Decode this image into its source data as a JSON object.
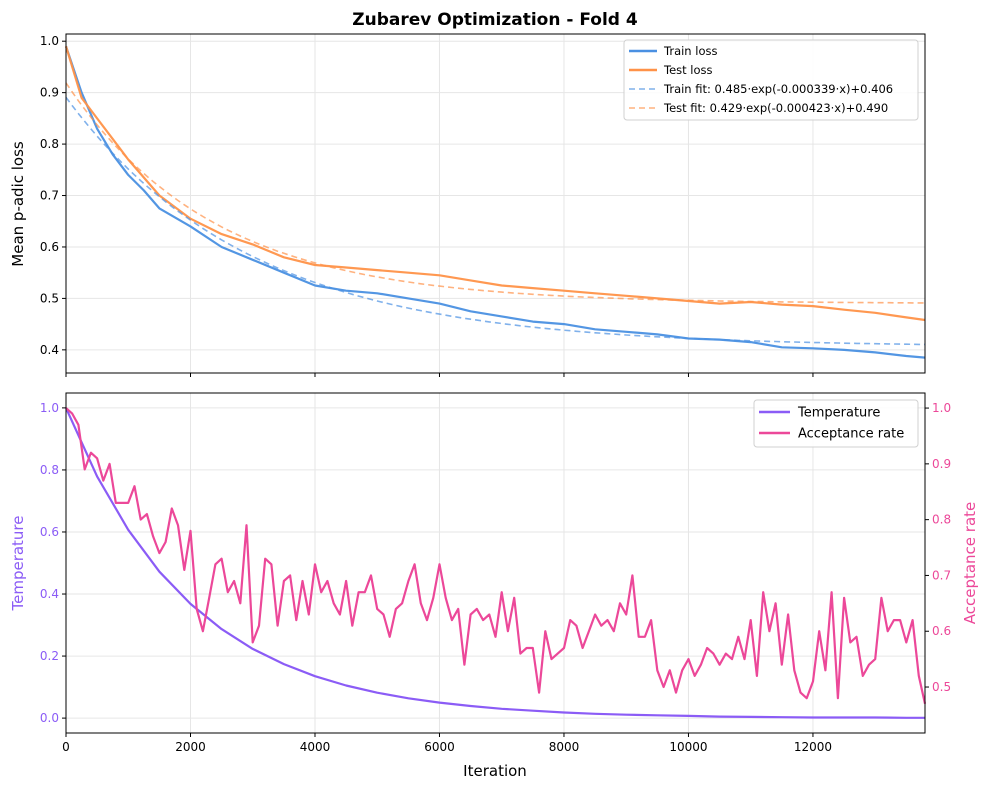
{
  "chart_data": [
    {
      "type": "line",
      "title": "Zubarev Optimization - Fold 4",
      "xlabel": "",
      "ylabel": "Mean p-adic loss",
      "xlim": [
        0,
        13800
      ],
      "ylim": [
        0.355,
        1.014
      ],
      "xticks": [
        0,
        2000,
        4000,
        6000,
        8000,
        10000,
        12000
      ],
      "yticks": [
        "0.4",
        "0.5",
        "0.6",
        "0.7",
        "0.8",
        "0.9",
        "1.0"
      ],
      "grid": true,
      "legend_placement": "upper right",
      "series": [
        {
          "name": "Train loss",
          "color": "#4a90e2",
          "style": "solid",
          "x": [
            0,
            250,
            500,
            750,
            1000,
            1250,
            1500,
            2000,
            2500,
            3000,
            3500,
            4000,
            4500,
            5000,
            5500,
            6000,
            6500,
            7000,
            7500,
            8000,
            8500,
            9000,
            9500,
            10000,
            10500,
            11000,
            11500,
            12000,
            12500,
            13000,
            13500,
            13800
          ],
          "y": [
            0.99,
            0.9,
            0.83,
            0.78,
            0.74,
            0.71,
            0.675,
            0.64,
            0.6,
            0.575,
            0.55,
            0.525,
            0.515,
            0.51,
            0.5,
            0.49,
            0.475,
            0.465,
            0.455,
            0.45,
            0.44,
            0.435,
            0.43,
            0.422,
            0.42,
            0.415,
            0.405,
            0.403,
            0.4,
            0.395,
            0.388,
            0.385
          ]
        },
        {
          "name": "Test loss",
          "color": "#ff9248",
          "style": "solid",
          "x": [
            0,
            250,
            500,
            750,
            1000,
            1500,
            2000,
            2500,
            3000,
            3500,
            4000,
            4500,
            5000,
            5500,
            6000,
            6500,
            7000,
            7500,
            8000,
            8500,
            9000,
            9500,
            10000,
            10500,
            11000,
            11500,
            12000,
            12500,
            13000,
            13500,
            13800
          ],
          "y": [
            0.99,
            0.89,
            0.85,
            0.81,
            0.77,
            0.7,
            0.655,
            0.625,
            0.605,
            0.58,
            0.565,
            0.56,
            0.555,
            0.55,
            0.545,
            0.535,
            0.525,
            0.52,
            0.515,
            0.51,
            0.505,
            0.5,
            0.495,
            0.49,
            0.493,
            0.488,
            0.485,
            0.478,
            0.472,
            0.463,
            0.458
          ]
        },
        {
          "name": "Train fit: 0.485·exp(-0.000339·x)+0.406",
          "color": "#4a90e2",
          "style": "dashed",
          "fit": {
            "a": 0.485,
            "b": 0.000339,
            "c": 0.406
          }
        },
        {
          "name": "Test fit: 0.429·exp(-0.000423·x)+0.490",
          "color": "#ff9248",
          "style": "dashed",
          "fit": {
            "a": 0.429,
            "b": 0.000423,
            "c": 0.49
          }
        }
      ]
    },
    {
      "type": "line",
      "title": "",
      "xlabel": "Iteration",
      "ylabel": "Temperature",
      "ylabel_right": "Acceptance rate",
      "xlim": [
        0,
        13800
      ],
      "ylim": [
        -0.048,
        1.048
      ],
      "ylim_right": [
        0.4176,
        1.027
      ],
      "xticks": [
        "0",
        "2000",
        "4000",
        "6000",
        "8000",
        "10000",
        "12000"
      ],
      "yticks": [
        "0.0",
        "0.2",
        "0.4",
        "0.6",
        "0.8",
        "1.0"
      ],
      "yticks_right": [
        "0.5",
        "0.6",
        "0.7",
        "0.8",
        "0.9",
        "1.0"
      ],
      "grid": true,
      "legend_placement": "upper right",
      "series": [
        {
          "name": "Temperature",
          "color": "#8b5cf6",
          "axis": "left",
          "x": [
            0,
            500,
            1000,
            1500,
            2000,
            2500,
            3000,
            3500,
            4000,
            4500,
            5000,
            5500,
            6000,
            6500,
            7000,
            7500,
            8000,
            8500,
            9000,
            9500,
            10000,
            10500,
            11000,
            11500,
            12000,
            12500,
            13000,
            13500,
            13800
          ],
          "y": [
            1,
            0.779,
            0.607,
            0.472,
            0.368,
            0.287,
            0.223,
            0.174,
            0.135,
            0.105,
            0.082,
            0.064,
            0.05,
            0.039,
            0.03,
            0.024,
            0.018,
            0.014,
            0.011,
            0.009,
            0.007,
            0.005,
            0.004,
            0.003,
            0.002,
            0.002,
            0.002,
            0.001,
            0.001
          ]
        },
        {
          "name": "Acceptance rate",
          "color": "#ec4899",
          "axis": "right",
          "x_step": 100,
          "y": [
            1.0,
            0.99,
            0.97,
            0.89,
            0.92,
            0.91,
            0.87,
            0.9,
            0.83,
            0.83,
            0.83,
            0.86,
            0.8,
            0.81,
            0.77,
            0.74,
            0.76,
            0.82,
            0.79,
            0.71,
            0.78,
            0.64,
            0.6,
            0.66,
            0.72,
            0.73,
            0.67,
            0.69,
            0.65,
            0.79,
            0.58,
            0.61,
            0.73,
            0.72,
            0.61,
            0.69,
            0.7,
            0.62,
            0.69,
            0.63,
            0.72,
            0.67,
            0.69,
            0.65,
            0.63,
            0.69,
            0.61,
            0.67,
            0.67,
            0.7,
            0.64,
            0.63,
            0.59,
            0.64,
            0.65,
            0.69,
            0.72,
            0.65,
            0.62,
            0.66,
            0.72,
            0.66,
            0.62,
            0.64,
            0.54,
            0.63,
            0.64,
            0.62,
            0.63,
            0.59,
            0.67,
            0.6,
            0.66,
            0.56,
            0.57,
            0.57,
            0.49,
            0.6,
            0.55,
            0.56,
            0.57,
            0.62,
            0.61,
            0.57,
            0.6,
            0.63,
            0.61,
            0.62,
            0.6,
            0.65,
            0.63,
            0.7,
            0.59,
            0.59,
            0.62,
            0.53,
            0.5,
            0.53,
            0.49,
            0.53,
            0.55,
            0.52,
            0.54,
            0.57,
            0.56,
            0.54,
            0.56,
            0.55,
            0.59,
            0.55,
            0.62,
            0.52,
            0.67,
            0.6,
            0.65,
            0.54,
            0.63,
            0.53,
            0.49,
            0.48,
            0.51,
            0.6,
            0.53,
            0.67,
            0.48,
            0.66,
            0.58,
            0.59,
            0.52,
            0.54,
            0.55,
            0.66,
            0.6,
            0.62,
            0.62,
            0.58,
            0.62,
            0.52,
            0.47
          ]
        }
      ]
    }
  ]
}
